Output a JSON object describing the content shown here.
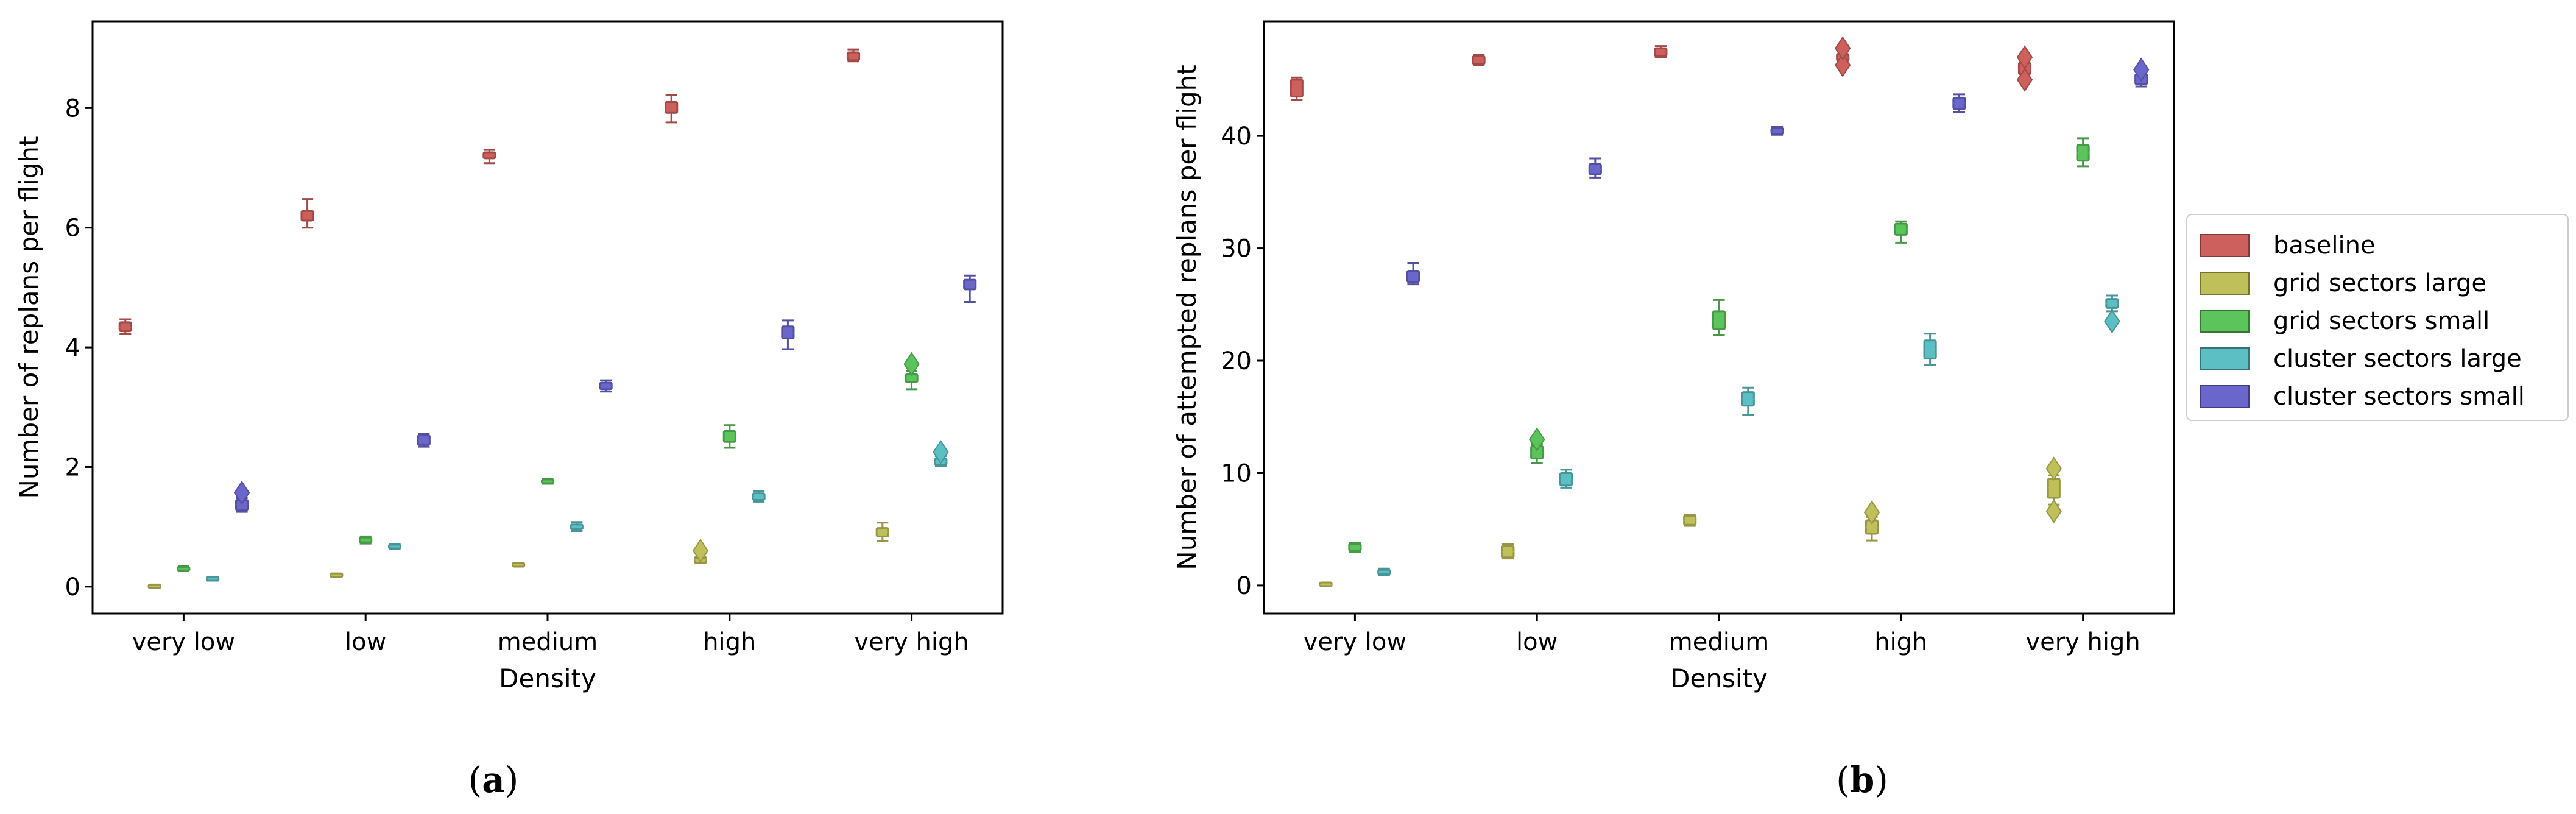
{
  "legend": [
    {
      "name": "baseline",
      "color": "#cd5f5c"
    },
    {
      "name": "grid sectors large",
      "color": "#c0c05a"
    },
    {
      "name": "grid sectors small",
      "color": "#5bc45b"
    },
    {
      "name": "cluster sectors large",
      "color": "#5bbfc3"
    },
    {
      "name": "cluster sectors small",
      "color": "#6b66cc"
    }
  ],
  "chart_data": [
    {
      "type": "box",
      "caption_open": "(",
      "caption_letter": "a",
      "caption_close": ")",
      "xlabel": "Density",
      "ylabel": "Number of replans per flight",
      "categories": [
        "very low",
        "low",
        "medium",
        "high",
        "very high"
      ],
      "ylim": [
        -0.45,
        9.45
      ],
      "yticks": [
        "0",
        "2",
        "4",
        "6",
        "8"
      ],
      "grid": false,
      "series": [
        {
          "name": "baseline",
          "boxes": [
            {
              "q1": 4.27,
              "median": 4.33,
              "q3": 4.42,
              "whislo": 4.22,
              "whishi": 4.47,
              "outliers": []
            },
            {
              "q1": 6.12,
              "median": 6.2,
              "q3": 6.28,
              "whislo": 6.0,
              "whishi": 6.48,
              "outliers": []
            },
            {
              "q1": 7.16,
              "median": 7.2,
              "q3": 7.26,
              "whislo": 7.08,
              "whishi": 7.3,
              "outliers": []
            },
            {
              "q1": 7.92,
              "median": 8.0,
              "q3": 8.1,
              "whislo": 7.76,
              "whishi": 8.22,
              "outliers": []
            },
            {
              "q1": 8.8,
              "median": 8.87,
              "q3": 8.93,
              "whislo": 8.78,
              "whishi": 8.98,
              "outliers": []
            }
          ]
        },
        {
          "name": "grid sectors large",
          "boxes": [
            {
              "q1": 0.0,
              "median": 0.0,
              "q3": 0.01,
              "whislo": 0.0,
              "whishi": 0.01,
              "outliers": []
            },
            {
              "q1": 0.18,
              "median": 0.19,
              "q3": 0.2,
              "whislo": 0.18,
              "whishi": 0.2,
              "outliers": []
            },
            {
              "q1": 0.35,
              "median": 0.36,
              "q3": 0.38,
              "whislo": 0.35,
              "whishi": 0.38,
              "outliers": []
            },
            {
              "q1": 0.4,
              "median": 0.45,
              "q3": 0.48,
              "whislo": 0.39,
              "whishi": 0.5,
              "outliers": [
                0.6
              ]
            },
            {
              "q1": 0.84,
              "median": 0.92,
              "q3": 0.98,
              "whislo": 0.76,
              "whishi": 1.07,
              "outliers": []
            }
          ]
        },
        {
          "name": "grid sectors small",
          "boxes": [
            {
              "q1": 0.27,
              "median": 0.3,
              "q3": 0.33,
              "whislo": 0.26,
              "whishi": 0.34,
              "outliers": []
            },
            {
              "q1": 0.74,
              "median": 0.78,
              "q3": 0.82,
              "whislo": 0.72,
              "whishi": 0.84,
              "outliers": []
            },
            {
              "q1": 1.73,
              "median": 1.76,
              "q3": 1.79,
              "whislo": 1.72,
              "whishi": 1.8,
              "outliers": []
            },
            {
              "q1": 2.42,
              "median": 2.5,
              "q3": 2.6,
              "whislo": 2.32,
              "whishi": 2.7,
              "outliers": []
            },
            {
              "q1": 3.42,
              "median": 3.49,
              "q3": 3.55,
              "whislo": 3.3,
              "whishi": 3.6,
              "outliers": [
                3.72
              ]
            }
          ]
        },
        {
          "name": "cluster sectors large",
          "boxes": [
            {
              "q1": 0.11,
              "median": 0.13,
              "q3": 0.15,
              "whislo": 0.1,
              "whishi": 0.16,
              "outliers": []
            },
            {
              "q1": 0.64,
              "median": 0.67,
              "q3": 0.7,
              "whislo": 0.63,
              "whishi": 0.71,
              "outliers": []
            },
            {
              "q1": 0.96,
              "median": 1.0,
              "q3": 1.04,
              "whislo": 0.93,
              "whishi": 1.08,
              "outliers": []
            },
            {
              "q1": 1.45,
              "median": 1.5,
              "q3": 1.56,
              "whislo": 1.42,
              "whishi": 1.6,
              "outliers": []
            },
            {
              "q1": 2.04,
              "median": 2.09,
              "q3": 2.14,
              "whislo": 2.02,
              "whishi": 2.18,
              "outliers": [
                2.25
              ]
            }
          ]
        },
        {
          "name": "cluster sectors small",
          "boxes": [
            {
              "q1": 1.28,
              "median": 1.37,
              "q3": 1.45,
              "whislo": 1.25,
              "whishi": 1.48,
              "outliers": [
                1.57
              ]
            },
            {
              "q1": 2.37,
              "median": 2.45,
              "q3": 2.53,
              "whislo": 2.34,
              "whishi": 2.56,
              "outliers": []
            },
            {
              "q1": 3.3,
              "median": 3.35,
              "q3": 3.41,
              "whislo": 3.26,
              "whishi": 3.45,
              "outliers": []
            },
            {
              "q1": 4.15,
              "median": 4.24,
              "q3": 4.35,
              "whislo": 3.97,
              "whishi": 4.45,
              "outliers": []
            },
            {
              "q1": 4.97,
              "median": 5.05,
              "q3": 5.13,
              "whislo": 4.76,
              "whishi": 5.2,
              "outliers": []
            }
          ]
        }
      ]
    },
    {
      "type": "box",
      "caption_open": "(",
      "caption_letter": "b",
      "caption_close": ")",
      "xlabel": "Density",
      "ylabel": "Number of attempted replans per flight",
      "categories": [
        "very low",
        "low",
        "medium",
        "high",
        "very high"
      ],
      "ylim": [
        -2.5,
        50.2
      ],
      "yticks": [
        "0",
        "10",
        "20",
        "30",
        "40"
      ],
      "grid": false,
      "series": [
        {
          "name": "baseline",
          "boxes": [
            {
              "q1": 43.5,
              "median": 44.2,
              "q3": 45.0,
              "whislo": 43.2,
              "whishi": 45.2,
              "outliers": []
            },
            {
              "q1": 46.4,
              "median": 46.7,
              "q3": 47.1,
              "whislo": 46.3,
              "whishi": 47.2,
              "outliers": []
            },
            {
              "q1": 47.1,
              "median": 47.5,
              "q3": 47.8,
              "whislo": 47.0,
              "whishi": 48.0,
              "outliers": []
            },
            {
              "q1": 46.7,
              "median": 47.0,
              "q3": 47.3,
              "whislo": 46.5,
              "whishi": 47.5,
              "outliers": [
                46.3,
                47.8
              ]
            },
            {
              "q1": 45.5,
              "median": 46.0,
              "q3": 46.5,
              "whislo": 45.2,
              "whishi": 46.8,
              "outliers": [
                45.0,
                47.0
              ]
            }
          ]
        },
        {
          "name": "grid sectors large",
          "boxes": [
            {
              "q1": 0.0,
              "median": 0.1,
              "q3": 0.2,
              "whislo": 0.0,
              "whishi": 0.2,
              "outliers": []
            },
            {
              "q1": 2.5,
              "median": 3.0,
              "q3": 3.5,
              "whislo": 2.4,
              "whishi": 3.7,
              "outliers": []
            },
            {
              "q1": 5.4,
              "median": 5.8,
              "q3": 6.2,
              "whislo": 5.3,
              "whishi": 6.3,
              "outliers": []
            },
            {
              "q1": 4.6,
              "median": 5.2,
              "q3": 5.8,
              "whislo": 4.0,
              "whishi": 6.1,
              "outliers": [
                6.5
              ]
            },
            {
              "q1": 7.8,
              "median": 8.7,
              "q3": 9.5,
              "whislo": 7.2,
              "whishi": 9.8,
              "outliers": [
                6.6,
                10.4
              ]
            }
          ]
        },
        {
          "name": "grid sectors small",
          "boxes": [
            {
              "q1": 3.1,
              "median": 3.4,
              "q3": 3.7,
              "whislo": 3.0,
              "whishi": 3.8,
              "outliers": []
            },
            {
              "q1": 11.3,
              "median": 11.8,
              "q3": 12.4,
              "whislo": 10.9,
              "whishi": 12.6,
              "outliers": [
                13.0
              ]
            },
            {
              "q1": 22.8,
              "median": 23.5,
              "q3": 24.4,
              "whislo": 22.3,
              "whishi": 25.4,
              "outliers": []
            },
            {
              "q1": 31.2,
              "median": 31.7,
              "q3": 32.2,
              "whislo": 30.5,
              "whishi": 32.4,
              "outliers": []
            },
            {
              "q1": 37.8,
              "median": 38.5,
              "q3": 39.2,
              "whislo": 37.3,
              "whishi": 39.8,
              "outliers": []
            }
          ]
        },
        {
          "name": "cluster sectors large",
          "boxes": [
            {
              "q1": 1.0,
              "median": 1.2,
              "q3": 1.4,
              "whislo": 0.9,
              "whishi": 1.5,
              "outliers": []
            },
            {
              "q1": 8.9,
              "median": 9.4,
              "q3": 10.0,
              "whislo": 8.7,
              "whishi": 10.3,
              "outliers": []
            },
            {
              "q1": 16.0,
              "median": 16.6,
              "q3": 17.2,
              "whislo": 15.2,
              "whishi": 17.6,
              "outliers": []
            },
            {
              "q1": 20.2,
              "median": 21.0,
              "q3": 21.8,
              "whislo": 19.6,
              "whishi": 22.4,
              "outliers": []
            },
            {
              "q1": 24.7,
              "median": 25.1,
              "q3": 25.5,
              "whislo": 24.4,
              "whishi": 25.8,
              "outliers": [
                23.5
              ]
            }
          ]
        },
        {
          "name": "cluster sectors small",
          "boxes": [
            {
              "q1": 27.0,
              "median": 27.5,
              "q3": 28.0,
              "whislo": 26.8,
              "whishi": 28.7,
              "outliers": []
            },
            {
              "q1": 36.6,
              "median": 37.0,
              "q3": 37.5,
              "whislo": 36.3,
              "whishi": 38.0,
              "outliers": []
            },
            {
              "q1": 40.2,
              "median": 40.4,
              "q3": 40.7,
              "whislo": 40.1,
              "whishi": 40.8,
              "outliers": []
            },
            {
              "q1": 42.4,
              "median": 42.9,
              "q3": 43.4,
              "whislo": 42.1,
              "whishi": 43.7,
              "outliers": []
            },
            {
              "q1": 44.6,
              "median": 45.0,
              "q3": 45.5,
              "whislo": 44.4,
              "whishi": 45.8,
              "outliers": [
                45.9
              ]
            }
          ]
        }
      ]
    }
  ]
}
